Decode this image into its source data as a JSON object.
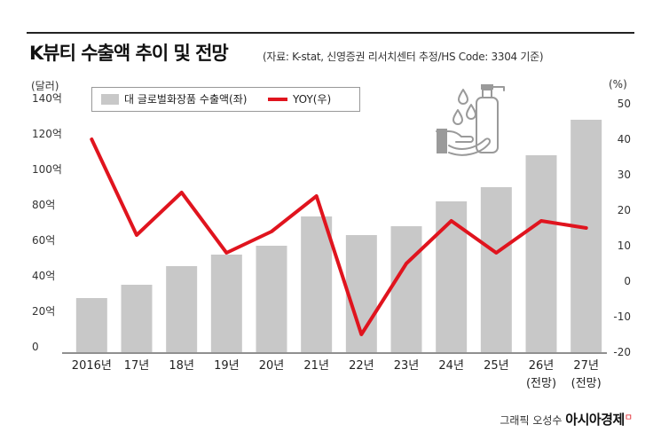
{
  "header": {
    "title": "K뷰티 수출액 추이 및 전망",
    "source": "(자료: K-stat, 신영증권 리서치센터 추정/HS Code: 3304 기준)"
  },
  "legend": {
    "bar_label": "대 글로벌화장품 수출액(좌)",
    "line_label": "YOY(우)"
  },
  "credit": {
    "prefix": "그래픽 오성수",
    "brand": "아시아경제",
    "mark": "ㅁ"
  },
  "colors": {
    "bar": "#c8c8c8",
    "line": "#e0141e",
    "axis": "#222222"
  },
  "icon": "hand-washing-soap-icon",
  "chart_data": {
    "type": "bar",
    "categories": [
      "2016년",
      "17년",
      "18년",
      "19년",
      "20년",
      "21년",
      "22년",
      "23년",
      "24년",
      "25년",
      "26년",
      "27년"
    ],
    "category_notes": [
      "",
      "",
      "",
      "",
      "",
      "",
      "",
      "",
      "",
      "",
      "(전망)",
      "(전망)"
    ],
    "left_axis": {
      "unit": "(달러)",
      "ticks": [
        "0",
        "20억",
        "40억",
        "60억",
        "80억",
        "100억",
        "120억",
        "140억"
      ],
      "ylim": [
        0,
        140
      ]
    },
    "right_axis": {
      "unit": "(%)",
      "ticks": [
        "-20",
        "-10",
        "0",
        "10",
        "20",
        "30",
        "40",
        "50"
      ],
      "ylim": [
        -20,
        50
      ]
    },
    "series": [
      {
        "name": "대 글로벌화장품 수출액(좌)",
        "type": "bar",
        "axis": "left",
        "values": [
          30.5,
          38,
          48.5,
          55,
          60,
          76.5,
          66,
          71,
          85,
          93,
          111,
          131
        ]
      },
      {
        "name": "YOY(우)",
        "type": "line",
        "axis": "right",
        "values": [
          40,
          13,
          25,
          8,
          14,
          24,
          -15,
          5,
          17,
          8,
          17,
          15
        ]
      }
    ],
    "grid": false,
    "legend_position": "top-left"
  }
}
